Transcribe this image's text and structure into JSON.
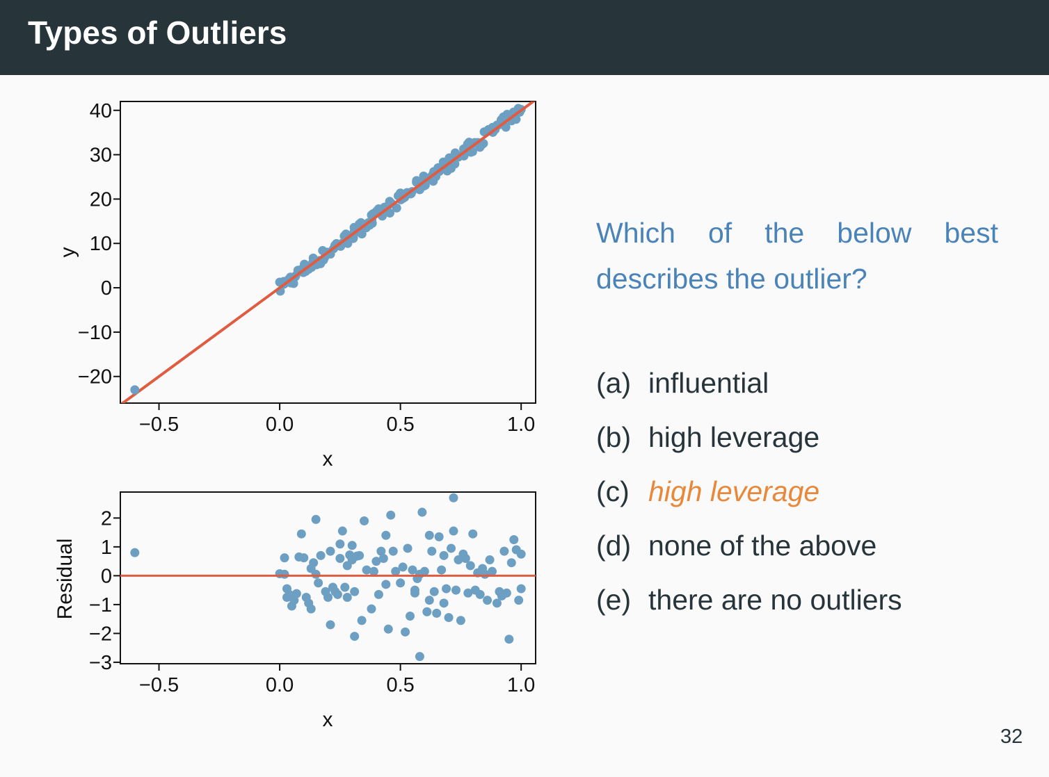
{
  "slide": {
    "title": "Types of Outliers",
    "question": "Which of the below best describes the outlier?",
    "options": [
      {
        "label": "(a)",
        "text": "influential"
      },
      {
        "label": "(b)",
        "text": "high leverage"
      },
      {
        "label": "(c)",
        "text": "high leverage"
      },
      {
        "label": "(d)",
        "text": "none of the above"
      },
      {
        "label": "(e)",
        "text": "there are no outliers"
      }
    ],
    "highlighted_option": 2,
    "page_number": "32"
  },
  "colors": {
    "header_bg": "#27353b",
    "question": "#4a83b8",
    "highlight": "#e8883a",
    "points": "#6d9fc2",
    "fit_line": "#df5c40"
  },
  "chart_data": [
    {
      "type": "scatter",
      "xlabel": "x",
      "ylabel": "y",
      "xlim": [
        -0.66,
        1.06
      ],
      "ylim": [
        -26,
        42
      ],
      "xticks": [
        -0.5,
        0.0,
        0.5,
        1.0
      ],
      "xtick_labels": [
        "−0.5",
        "0.0",
        "0.5",
        "1.0"
      ],
      "yticks": [
        40,
        30,
        20,
        10,
        0,
        -10,
        -20
      ],
      "ytick_labels": [
        "40",
        "30",
        "20",
        "10",
        "0",
        "−10",
        "−20"
      ],
      "outlier": {
        "x": -0.6,
        "y": -23
      },
      "fit_line": {
        "intercept": 0,
        "slope": 40
      },
      "points_note": "approx. 150 points along y = 40x for x in [0, 1]"
    },
    {
      "type": "scatter",
      "xlabel": "x",
      "ylabel": "Residual",
      "xlim": [
        -0.66,
        1.06
      ],
      "ylim": [
        -3.05,
        2.9
      ],
      "xticks": [
        -0.5,
        0.0,
        0.5,
        1.0
      ],
      "xtick_labels": [
        "−0.5",
        "0.0",
        "0.5",
        "1.0"
      ],
      "yticks": [
        2,
        1,
        0,
        -1,
        -2,
        -3
      ],
      "ytick_labels": [
        "2",
        "1",
        "0",
        "−1",
        "−2",
        "−3"
      ],
      "reference_line": 0,
      "outlier": {
        "x": -0.6,
        "y": 0.8
      },
      "points": [
        [
          0.0,
          0.07
        ],
        [
          0.02,
          0.05
        ],
        [
          0.02,
          0.62
        ],
        [
          0.03,
          -0.45
        ],
        [
          0.03,
          -0.75
        ],
        [
          0.04,
          -0.65
        ],
        [
          0.05,
          -1.05
        ],
        [
          0.06,
          -0.85
        ],
        [
          0.07,
          -0.62
        ],
        [
          0.08,
          0.65
        ],
        [
          0.09,
          1.45
        ],
        [
          0.1,
          0.62
        ],
        [
          0.11,
          -0.75
        ],
        [
          0.12,
          -0.95
        ],
        [
          0.13,
          0.25
        ],
        [
          0.13,
          -1.15
        ],
        [
          0.14,
          0.45
        ],
        [
          0.15,
          1.95
        ],
        [
          0.15,
          0.05
        ],
        [
          0.16,
          -0.25
        ],
        [
          0.17,
          0.7
        ],
        [
          0.19,
          -0.55
        ],
        [
          0.2,
          -0.75
        ],
        [
          0.21,
          0.85
        ],
        [
          0.22,
          -0.4
        ],
        [
          0.23,
          -0.55
        ],
        [
          0.24,
          -0.65
        ],
        [
          0.25,
          0.6
        ],
        [
          0.25,
          1.1
        ],
        [
          0.26,
          1.55
        ],
        [
          0.27,
          -0.4
        ],
        [
          0.28,
          -0.75
        ],
        [
          0.28,
          0.35
        ],
        [
          0.29,
          0.72
        ],
        [
          0.3,
          0.55
        ],
        [
          0.3,
          1.05
        ],
        [
          0.31,
          -0.55
        ],
        [
          0.31,
          -2.1
        ],
        [
          0.32,
          0.68
        ],
        [
          0.33,
          0.7
        ],
        [
          0.35,
          1.9
        ],
        [
          0.36,
          0.2
        ],
        [
          0.38,
          -1.15
        ],
        [
          0.39,
          0.15
        ],
        [
          0.4,
          0.5
        ],
        [
          0.41,
          -0.65
        ],
        [
          0.42,
          0.85
        ],
        [
          0.43,
          0.6
        ],
        [
          0.44,
          1.4
        ],
        [
          0.45,
          -1.85
        ],
        [
          0.46,
          2.1
        ],
        [
          0.47,
          0.85
        ],
        [
          0.48,
          0.15
        ],
        [
          0.5,
          -0.25
        ],
        [
          0.51,
          0.3
        ],
        [
          0.52,
          -1.95
        ],
        [
          0.53,
          0.95
        ],
        [
          0.54,
          -1.4
        ],
        [
          0.55,
          0.2
        ],
        [
          0.56,
          -0.5
        ],
        [
          0.57,
          -0.1
        ],
        [
          0.58,
          0.05
        ],
        [
          0.59,
          2.2
        ],
        [
          0.6,
          0.15
        ],
        [
          0.61,
          -1.25
        ],
        [
          0.62,
          1.4
        ],
        [
          0.63,
          0.85
        ],
        [
          0.64,
          -0.55
        ],
        [
          0.65,
          -1.3
        ],
        [
          0.66,
          1.35
        ],
        [
          0.67,
          0.2
        ],
        [
          0.68,
          -0.95
        ],
        [
          0.69,
          -0.45
        ],
        [
          0.7,
          -1.45
        ],
        [
          0.71,
          0.95
        ],
        [
          0.72,
          1.55
        ],
        [
          0.73,
          -0.5
        ],
        [
          0.74,
          0.55
        ],
        [
          0.75,
          -1.55
        ],
        [
          0.76,
          0.75
        ],
        [
          0.77,
          0.6
        ],
        [
          0.78,
          -0.6
        ],
        [
          0.79,
          0.35
        ],
        [
          0.8,
          1.45
        ],
        [
          0.81,
          -0.5
        ],
        [
          0.82,
          0.1
        ],
        [
          0.83,
          -0.65
        ],
        [
          0.84,
          0.25
        ],
        [
          0.85,
          0.05
        ],
        [
          0.86,
          -0.85
        ],
        [
          0.87,
          0.55
        ],
        [
          0.88,
          0.15
        ],
        [
          0.9,
          -0.95
        ],
        [
          0.91,
          -0.55
        ],
        [
          0.92,
          -0.7
        ],
        [
          0.93,
          0.85
        ],
        [
          0.94,
          -0.6
        ],
        [
          0.95,
          -2.2
        ],
        [
          0.96,
          0.45
        ],
        [
          0.97,
          1.25
        ],
        [
          0.98,
          0.9
        ],
        [
          0.99,
          -0.85
        ],
        [
          1.0,
          -0.45
        ],
        [
          1.0,
          0.75
        ],
        [
          0.58,
          -2.8
        ],
        [
          0.72,
          2.7
        ],
        [
          0.44,
          -0.3
        ],
        [
          0.68,
          0.7
        ],
        [
          0.56,
          -0.6
        ],
        [
          0.62,
          -0.85
        ],
        [
          0.34,
          -1.55
        ],
        [
          0.21,
          -1.7
        ]
      ]
    }
  ]
}
